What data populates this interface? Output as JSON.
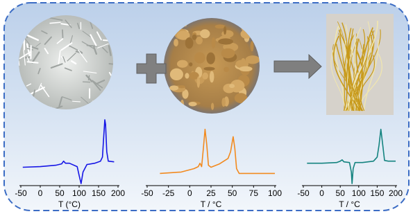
{
  "chart_data": [
    {
      "type": "line",
      "xlabel": "T (°C)",
      "xlim": [
        -50,
        200
      ],
      "xticks": [
        -50,
        0,
        50,
        100,
        150,
        200
      ],
      "ylim": [
        0,
        100
      ],
      "x": [
        -45,
        0,
        40,
        55,
        60,
        65,
        75,
        95,
        100,
        105,
        110,
        120,
        140,
        155,
        160,
        163,
        166,
        168,
        171,
        175,
        190
      ],
      "series": [
        {
          "color": "#1515e6",
          "values": [
            27,
            28,
            30,
            32,
            36,
            33,
            33,
            28,
            15,
            3,
            20,
            31,
            33,
            36,
            42,
            70,
            97,
            90,
            50,
            36,
            35
          ]
        }
      ]
    },
    {
      "type": "line",
      "xlabel": "T / °C",
      "xlim": [
        -50,
        100
      ],
      "xticks": [
        -50,
        -25,
        0,
        25,
        50,
        75,
        100
      ],
      "ylim": [
        0,
        100
      ],
      "x": [
        -35,
        -10,
        5,
        10,
        12,
        14,
        16,
        18,
        20,
        22,
        25,
        35,
        45,
        48,
        51,
        53,
        55,
        58,
        70,
        100
      ],
      "series": [
        {
          "color": "#f28a1e",
          "values": [
            18,
            20,
            25,
            28,
            33,
            28,
            55,
            83,
            60,
            30,
            27,
            32,
            40,
            50,
            72,
            55,
            25,
            18,
            18,
            18
          ]
        }
      ]
    },
    {
      "type": "line",
      "xlabel": "T / °C",
      "xlim": [
        -50,
        200
      ],
      "xticks": [
        -50,
        0,
        50,
        100,
        150,
        200
      ],
      "ylim": [
        0,
        100
      ],
      "x": [
        -40,
        0,
        40,
        50,
        55,
        60,
        75,
        80,
        82,
        85,
        90,
        110,
        140,
        150,
        155,
        160,
        165,
        170,
        180,
        200
      ],
      "series": [
        {
          "color": "#13837f",
          "values": [
            33,
            33,
            34,
            36,
            38,
            35,
            34,
            20,
            3,
            25,
            34,
            34,
            36,
            42,
            60,
            83,
            60,
            37,
            36,
            36
          ]
        }
      ]
    }
  ]
}
